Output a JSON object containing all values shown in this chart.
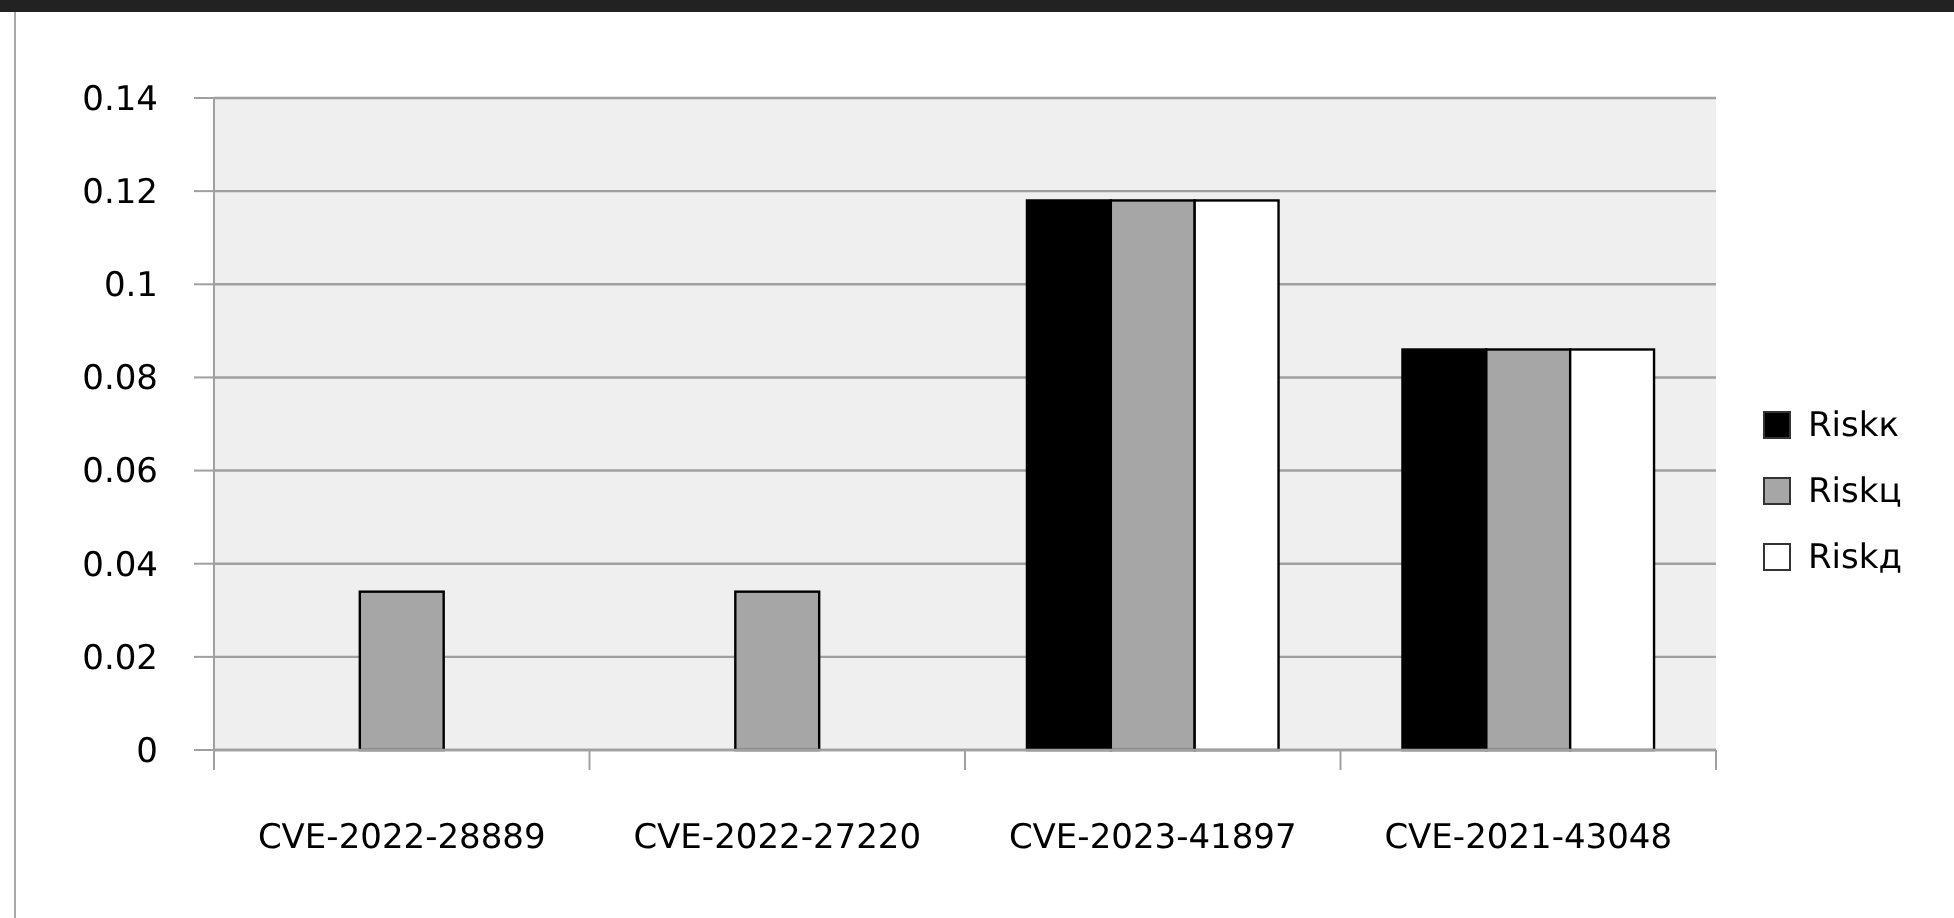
{
  "chart_data": {
    "type": "bar",
    "categories": [
      "CVE-2022-28889",
      "CVE-2022-27220",
      "CVE-2023-41897",
      "CVE-2021-43048"
    ],
    "series": [
      {
        "name": "Riskк",
        "color": "#000000",
        "values": [
          0,
          0,
          0.118,
          0.086
        ]
      },
      {
        "name": "Riskц",
        "color": "#a6a6a6",
        "values": [
          0.034,
          0.034,
          0.118,
          0.086
        ]
      },
      {
        "name": "Riskд",
        "color": "#ffffff",
        "values": [
          0,
          0,
          0.118,
          0.086
        ]
      }
    ],
    "ylim": [
      0,
      0.14
    ],
    "yticks": [
      0,
      0.02,
      0.04,
      0.06,
      0.08,
      0.1,
      0.12,
      0.14
    ],
    "grid": "y",
    "legend": "right"
  }
}
